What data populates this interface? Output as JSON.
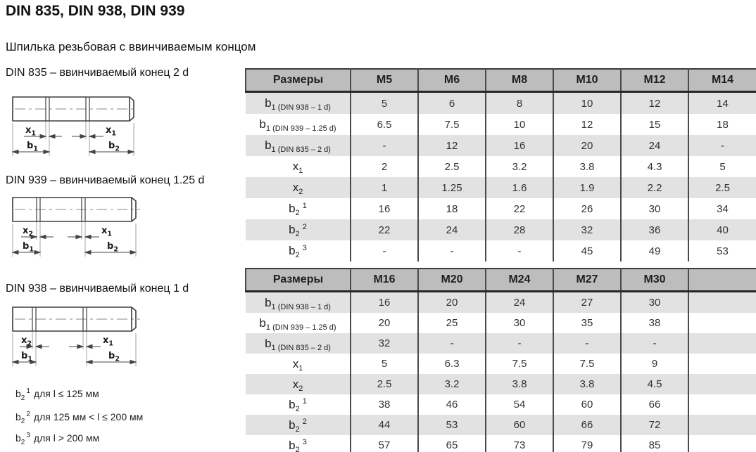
{
  "page": {
    "title": "DIN 835, DIN 938, DIN 939",
    "subtitle": "Шпилька резьбовая с ввинчиваемым концом"
  },
  "colors": {
    "header_bg": "#bdbdbd",
    "row_shade": "#e2e2e2",
    "border": "#4a4a4a",
    "header_border": "#262626"
  },
  "drawings": [
    {
      "label": "DIN 835 – ввинчиваемый конец 2 d",
      "dims": {
        "left_x": {
          "base": "x",
          "sub": "1"
        },
        "right_x": {
          "base": "x",
          "sub": "1"
        },
        "left_b": {
          "base": "b",
          "sub": "1"
        },
        "right_b": {
          "base": "b",
          "sub": "2"
        }
      }
    },
    {
      "label": "DIN 939 – ввинчиваемый конец 1.25 d",
      "dims": {
        "left_x": {
          "base": "x",
          "sub": "2"
        },
        "right_x": {
          "base": "x",
          "sub": "1"
        },
        "left_b": {
          "base": "b",
          "sub": "1"
        },
        "right_b": {
          "base": "b",
          "sub": "2"
        }
      }
    },
    {
      "label": "DIN 938 – ввинчиваемый конец 1 d",
      "dims": {
        "left_x": {
          "base": "x",
          "sub": "2"
        },
        "right_x": {
          "base": "x",
          "sub": "1"
        },
        "left_b": {
          "base": "b",
          "sub": "1"
        },
        "right_b": {
          "base": "b",
          "sub": "2"
        }
      }
    }
  ],
  "footnotes": [
    {
      "base": "b",
      "sub": "2",
      "sup": "1",
      "text": "для l ≤ 125 мм"
    },
    {
      "base": "b",
      "sub": "2",
      "sup": "2",
      "text": "для 125 мм < l ≤ 200 мм"
    },
    {
      "base": "b",
      "sub": "2",
      "sup": "3",
      "text": "для l > 200 мм"
    }
  ],
  "tables": [
    {
      "corner": "Размеры",
      "columns": [
        "M5",
        "M6",
        "M8",
        "M10",
        "M12",
        "M14"
      ],
      "rows": [
        {
          "label": {
            "base": "b",
            "sub": "1",
            "note": "(DIN 938 – 1 d)"
          },
          "values": [
            "5",
            "6",
            "8",
            "10",
            "12",
            "14"
          ]
        },
        {
          "label": {
            "base": "b",
            "sub": "1",
            "note": "(DIN 939 – 1.25 d)"
          },
          "values": [
            "6.5",
            "7.5",
            "10",
            "12",
            "15",
            "18"
          ]
        },
        {
          "label": {
            "base": "b",
            "sub": "1",
            "note": "(DIN 835 – 2 d)"
          },
          "values": [
            "-",
            "12",
            "16",
            "20",
            "24",
            "-"
          ]
        },
        {
          "label": {
            "base": "x",
            "sub": "1"
          },
          "values": [
            "2",
            "2.5",
            "3.2",
            "3.8",
            "4.3",
            "5"
          ]
        },
        {
          "label": {
            "base": "x",
            "sub": "2"
          },
          "values": [
            "1",
            "1.25",
            "1.6",
            "1.9",
            "2.2",
            "2.5"
          ]
        },
        {
          "label": {
            "base": "b",
            "sub": "2",
            "sup": "1"
          },
          "values": [
            "16",
            "18",
            "22",
            "26",
            "30",
            "34"
          ]
        },
        {
          "label": {
            "base": "b",
            "sub": "2",
            "sup": "2"
          },
          "values": [
            "22",
            "24",
            "28",
            "32",
            "36",
            "40"
          ]
        },
        {
          "label": {
            "base": "b",
            "sub": "2",
            "sup": "3"
          },
          "values": [
            "-",
            "-",
            "-",
            "45",
            "49",
            "53"
          ]
        }
      ]
    },
    {
      "corner": "Размеры",
      "columns": [
        "M16",
        "M20",
        "M24",
        "M27",
        "M30",
        ""
      ],
      "rows": [
        {
          "label": {
            "base": "b",
            "sub": "1",
            "note": "(DIN 938 – 1 d)"
          },
          "values": [
            "16",
            "20",
            "24",
            "27",
            "30",
            ""
          ]
        },
        {
          "label": {
            "base": "b",
            "sub": "1",
            "note": "(DIN 939 – 1.25 d)"
          },
          "values": [
            "20",
            "25",
            "30",
            "35",
            "38",
            ""
          ]
        },
        {
          "label": {
            "base": "b",
            "sub": "1",
            "note": "(DIN 835 – 2 d)"
          },
          "values": [
            "32",
            "-",
            "-",
            "-",
            "-",
            ""
          ]
        },
        {
          "label": {
            "base": "x",
            "sub": "1"
          },
          "values": [
            "5",
            "6.3",
            "7.5",
            "7.5",
            "9",
            ""
          ]
        },
        {
          "label": {
            "base": "x",
            "sub": "2"
          },
          "values": [
            "2.5",
            "3.2",
            "3.8",
            "3.8",
            "4.5",
            ""
          ]
        },
        {
          "label": {
            "base": "b",
            "sub": "2",
            "sup": "1"
          },
          "values": [
            "38",
            "46",
            "54",
            "60",
            "66",
            ""
          ]
        },
        {
          "label": {
            "base": "b",
            "sub": "2",
            "sup": "2"
          },
          "values": [
            "44",
            "53",
            "60",
            "66",
            "72",
            ""
          ]
        },
        {
          "label": {
            "base": "b",
            "sub": "2",
            "sup": "3"
          },
          "values": [
            "57",
            "65",
            "73",
            "79",
            "85",
            ""
          ]
        }
      ]
    }
  ]
}
